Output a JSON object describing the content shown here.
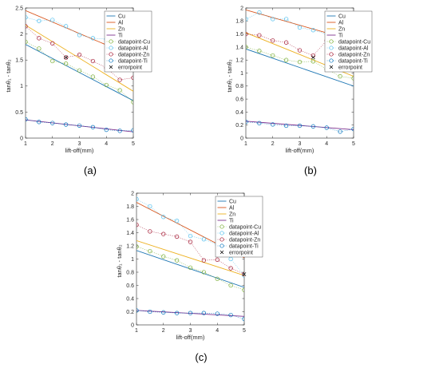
{
  "colors": {
    "Cu": "#1f77b4",
    "Al": "#d95319",
    "Zn": "#edb120",
    "Ti": "#7e2f8e",
    "datapoint-Cu": "#77ac30",
    "datapoint-Al": "#4dbeee",
    "datapoint-Zn": "#a2142f",
    "datapoint-Ti": "#0072bd",
    "errorpoint": "#000000"
  },
  "legend_labels": [
    "Cu",
    "Al",
    "Zn",
    "Ti",
    "datapoint-Cu",
    "datapoint-Al",
    "datapoint-Zn",
    "datapoint-Ti",
    "errorpoint"
  ],
  "chart_data": [
    {
      "type": "line",
      "caption": "(a)",
      "xlabel": "lift-off(mm)",
      "ylabel": "tanθ₁ - tanθ₂",
      "xlim": [
        1,
        5
      ],
      "ylim": [
        0,
        2.5
      ],
      "xticks": [
        1,
        2,
        3,
        4,
        5
      ],
      "yticks": [
        0,
        0.5,
        1,
        1.5,
        2,
        2.5
      ],
      "legend_position": "top-right",
      "series": [
        {
          "name": "Cu",
          "kind": "fit",
          "x": [
            1,
            5
          ],
          "y": [
            1.8,
            0.72
          ]
        },
        {
          "name": "Al",
          "kind": "fit",
          "x": [
            1,
            5
          ],
          "y": [
            2.45,
            1.57
          ]
        },
        {
          "name": "Zn",
          "kind": "fit",
          "x": [
            1,
            5
          ],
          "y": [
            2.17,
            0.9
          ]
        },
        {
          "name": "Ti",
          "kind": "fit",
          "x": [
            1,
            5
          ],
          "y": [
            0.35,
            0.12
          ]
        },
        {
          "name": "datapoint-Cu",
          "kind": "points",
          "x": [
            1,
            1.5,
            2,
            2.5,
            3,
            3.5,
            4,
            4.5,
            5
          ],
          "y": [
            1.85,
            1.72,
            1.48,
            1.43,
            1.3,
            1.18,
            1.02,
            0.92,
            0.69
          ]
        },
        {
          "name": "datapoint-Al",
          "kind": "points",
          "x": [
            1,
            1.5,
            2,
            2.5,
            3,
            3.5,
            4,
            4.5,
            5
          ],
          "y": [
            2.32,
            2.25,
            2.27,
            2.15,
            1.98,
            1.92,
            1.9,
            1.78,
            1.57
          ]
        },
        {
          "name": "datapoint-Zn",
          "kind": "points",
          "x": [
            1,
            1.5,
            2,
            2.5,
            3,
            3.5,
            4,
            4.5,
            5
          ],
          "y": [
            2.15,
            1.92,
            1.82,
            1.55,
            1.6,
            1.48,
            1.35,
            1.12,
            1.16
          ]
        },
        {
          "name": "datapoint-Ti",
          "kind": "points",
          "x": [
            1,
            1.5,
            2,
            2.5,
            3,
            3.5,
            4,
            4.5,
            5
          ],
          "y": [
            0.36,
            0.31,
            0.29,
            0.26,
            0.24,
            0.21,
            0.16,
            0.14,
            0.15
          ]
        },
        {
          "name": "errorpoint",
          "kind": "error",
          "x": [
            2.5
          ],
          "y": [
            1.55
          ]
        }
      ]
    },
    {
      "type": "line",
      "caption": "(b)",
      "xlabel": "lift-off(mm)",
      "ylabel": "tanθ₁ - tanθ₂",
      "xlim": [
        1,
        5
      ],
      "ylim": [
        0,
        2
      ],
      "xticks": [
        1,
        2,
        3,
        4,
        5
      ],
      "yticks": [
        0,
        0.2,
        0.4,
        0.6,
        0.8,
        1,
        1.2,
        1.4,
        1.6,
        1.8,
        2
      ],
      "legend_position": "top-right",
      "series": [
        {
          "name": "Cu",
          "kind": "fit",
          "x": [
            1,
            5
          ],
          "y": [
            1.37,
            0.8
          ]
        },
        {
          "name": "Al",
          "kind": "fit",
          "x": [
            1,
            5
          ],
          "y": [
            1.97,
            1.5
          ]
        },
        {
          "name": "Zn",
          "kind": "fit",
          "x": [
            1,
            5
          ],
          "y": [
            1.62,
            0.95
          ]
        },
        {
          "name": "Ti",
          "kind": "fit",
          "x": [
            1,
            5
          ],
          "y": [
            0.26,
            0.13
          ]
        },
        {
          "name": "datapoint-Cu",
          "kind": "points",
          "x": [
            1,
            1.5,
            2,
            2.5,
            3,
            3.5,
            4,
            4.5,
            5
          ],
          "y": [
            1.4,
            1.34,
            1.27,
            1.2,
            1.17,
            1.18,
            1.06,
            0.95,
            0.92
          ]
        },
        {
          "name": "datapoint-Al",
          "kind": "points",
          "x": [
            1,
            1.5,
            2,
            2.5,
            3,
            3.5,
            4,
            4.5,
            5
          ],
          "y": [
            1.83,
            1.93,
            1.83,
            1.83,
            1.7,
            1.66,
            1.6,
            1.5,
            1.43
          ]
        },
        {
          "name": "datapoint-Zn",
          "kind": "points",
          "x": [
            1,
            1.5,
            2,
            2.5,
            3,
            3.5,
            4,
            4.5,
            5
          ],
          "y": [
            1.6,
            1.58,
            1.5,
            1.47,
            1.35,
            1.27,
            1.5,
            1.15,
            1.1
          ]
        },
        {
          "name": "datapoint-Ti",
          "kind": "points",
          "x": [
            1,
            1.5,
            2,
            2.5,
            3,
            3.5,
            4,
            4.5,
            5
          ],
          "y": [
            0.25,
            0.23,
            0.21,
            0.19,
            0.19,
            0.18,
            0.16,
            0.1,
            0.14
          ]
        },
        {
          "name": "errorpoint",
          "kind": "error",
          "x": [
            3.5,
            4
          ],
          "y": [
            1.24,
            1.49
          ]
        }
      ]
    },
    {
      "type": "line",
      "caption": "(c)",
      "xlabel": "lift-off(mm)",
      "ylabel": "tanθ₁ - tanθ₂",
      "xlim": [
        1,
        5
      ],
      "ylim": [
        0,
        2
      ],
      "xticks": [
        1,
        2,
        3,
        4,
        5
      ],
      "yticks": [
        0,
        0.2,
        0.4,
        0.6,
        0.8,
        1,
        1.2,
        1.4,
        1.6,
        1.8,
        2
      ],
      "legend_position": "top-right",
      "series": [
        {
          "name": "Cu",
          "kind": "fit",
          "x": [
            1,
            5
          ],
          "y": [
            1.13,
            0.57
          ]
        },
        {
          "name": "Al",
          "kind": "fit",
          "x": [
            1,
            5
          ],
          "y": [
            1.86,
            1.02
          ]
        },
        {
          "name": "Zn",
          "kind": "fit",
          "x": [
            1,
            5
          ],
          "y": [
            1.28,
            0.75
          ]
        },
        {
          "name": "Ti",
          "kind": "fit",
          "x": [
            1,
            5
          ],
          "y": [
            0.22,
            0.13
          ]
        },
        {
          "name": "datapoint-Cu",
          "kind": "points",
          "x": [
            1,
            1.5,
            2,
            2.5,
            3,
            3.5,
            4,
            4.5,
            5
          ],
          "y": [
            1.19,
            1.12,
            1.04,
            0.98,
            0.87,
            0.8,
            0.7,
            0.6,
            0.53
          ]
        },
        {
          "name": "datapoint-Al",
          "kind": "points",
          "x": [
            1,
            1.5,
            2,
            2.5,
            3,
            3.5,
            4,
            4.5,
            5
          ],
          "y": [
            1.91,
            1.8,
            1.64,
            1.58,
            1.35,
            1.3,
            1.22,
            1.0,
            0.75
          ]
        },
        {
          "name": "datapoint-Zn",
          "kind": "points",
          "x": [
            1,
            1.5,
            2,
            2.5,
            3,
            3.5,
            4,
            4.5,
            5
          ],
          "y": [
            1.52,
            1.42,
            1.38,
            1.34,
            1.26,
            0.98,
            0.99,
            0.86,
            0.77
          ]
        },
        {
          "name": "datapoint-Ti",
          "kind": "points",
          "x": [
            1,
            1.5,
            2,
            2.5,
            3,
            3.5,
            4,
            4.5,
            5
          ],
          "y": [
            0.22,
            0.2,
            0.19,
            0.18,
            0.18,
            0.18,
            0.17,
            0.15,
            0.09
          ]
        },
        {
          "name": "errorpoint",
          "kind": "error",
          "x": [
            5
          ],
          "y": [
            0.77
          ]
        }
      ]
    }
  ]
}
